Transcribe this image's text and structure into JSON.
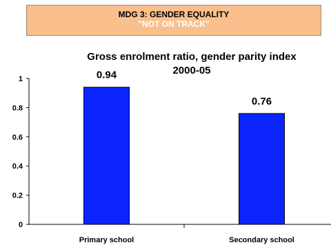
{
  "banner": {
    "line1": "MDG 3: GENDER EQUALITY",
    "line2": "\"NOT ON TRACK\"",
    "background": "#f9c08d",
    "text2_color": "#ffffff"
  },
  "chart_data": {
    "type": "bar",
    "title_line1": "Gross enrolment ratio, gender parity index",
    "title_line2": "2000-05",
    "categories": [
      "Primary school",
      "Secondary school"
    ],
    "values": [
      0.94,
      0.76
    ],
    "data_labels": [
      "0.94",
      "0.76"
    ],
    "y_ticks": [
      "0",
      "0.2",
      "0.4",
      "0.6",
      "0.8",
      "1"
    ],
    "ylim": [
      0,
      1
    ],
    "bar_color": "#0b24fb",
    "bar_stroke": "#000000",
    "grid": false,
    "legend": "none"
  }
}
